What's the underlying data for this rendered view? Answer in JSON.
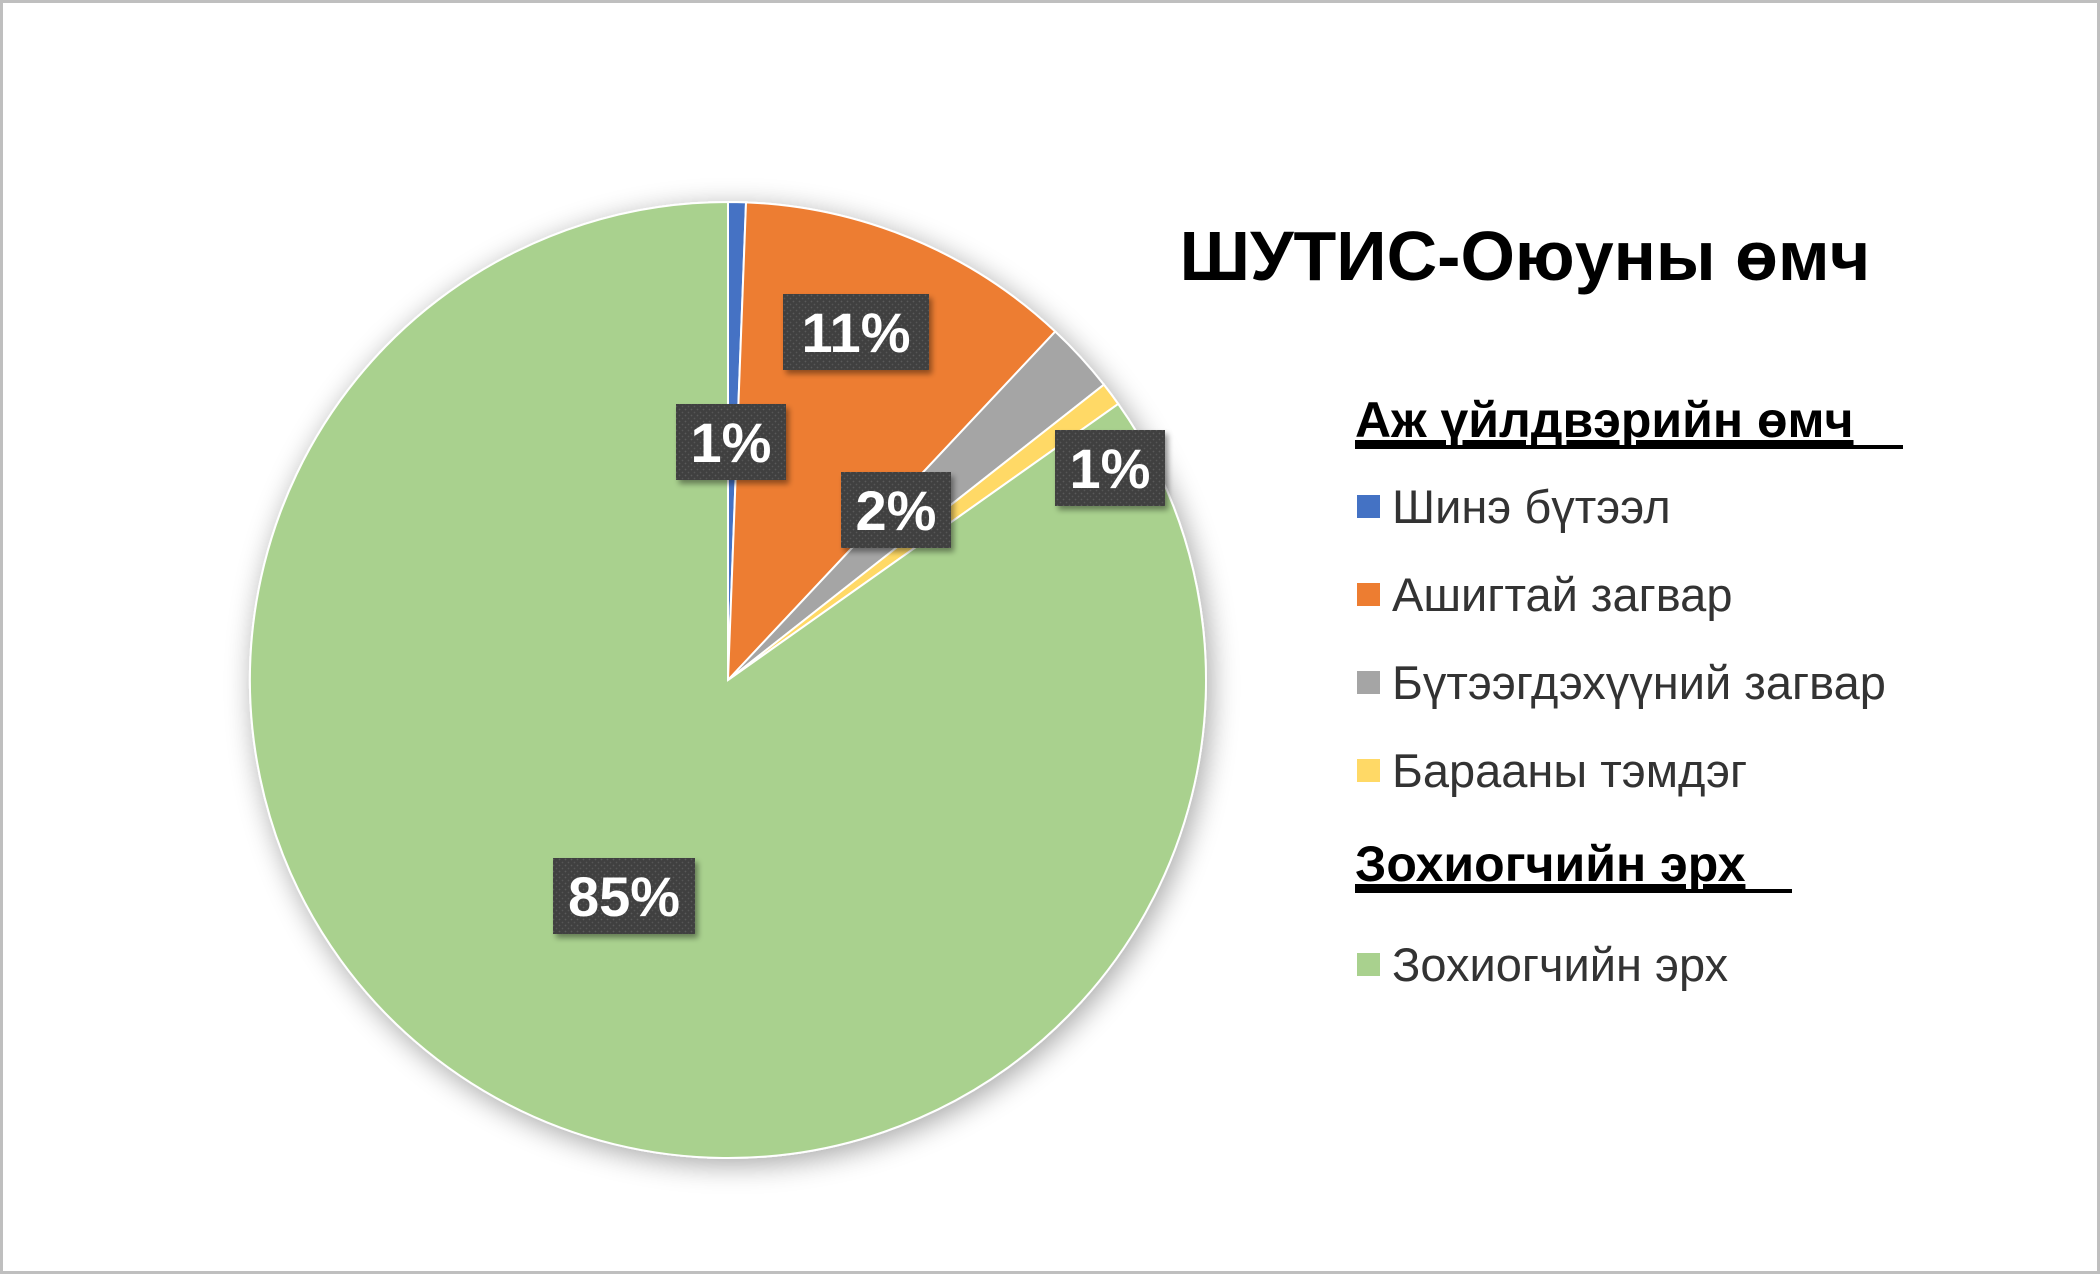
{
  "chart_data": {
    "type": "pie",
    "title": "ШУТИС-Оюуны өмч",
    "legend_position": "right",
    "slices": [
      {
        "label": "Шинэ бүтээл",
        "percent": 0.6,
        "data_label": "1%",
        "color": "#4472C4",
        "group": "industrial"
      },
      {
        "label": "Ашигтай загвар",
        "percent": 11.4,
        "data_label": "11%",
        "color": "#ED7D31",
        "group": "industrial"
      },
      {
        "label": "Бүтээгдэхүүний загвар",
        "percent": 2.4,
        "data_label": "2%",
        "color": "#A5A5A5",
        "group": "industrial"
      },
      {
        "label": "Барааны тэмдэг",
        "percent": 0.8,
        "data_label": "1%",
        "color": "#FFD966",
        "group": "industrial"
      },
      {
        "label": "Зохиогчийн эрх",
        "percent": 84.8,
        "data_label": "85%",
        "color": "#A9D18E",
        "group": "copyright"
      }
    ],
    "legend_groups": [
      {
        "key": "industrial",
        "heading": "Аж үйлдвэрийн өмч"
      },
      {
        "key": "copyright",
        "heading": "Зохиогчийн эрх"
      }
    ]
  },
  "style": {
    "frame_border": "#BFBFBF",
    "label_box_fill": "#404040"
  }
}
